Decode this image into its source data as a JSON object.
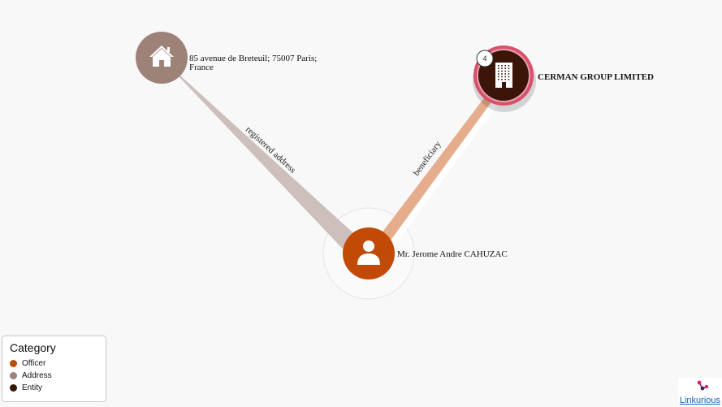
{
  "nodes": {
    "address": {
      "label_line1": "85 avenue de Breteuil; 75007 Paris;",
      "label_line2": "France",
      "icon": "home-icon",
      "color": "#9d8278"
    },
    "entity": {
      "label": "CERMAN GROUP LIMITED",
      "icon": "building-icon",
      "color": "#3b1508",
      "ring_color": "#d9506a",
      "badge": "4"
    },
    "officer": {
      "label": "Mr. Jerome Andre CAHUZAC",
      "icon": "person-icon",
      "color": "#c04a06"
    }
  },
  "edges": {
    "registered": {
      "label": "registered address",
      "color": "#cdbfbb"
    },
    "beneficiary": {
      "label": "beneficiary",
      "color": "#e6ad8c"
    }
  },
  "legend": {
    "title": "Category",
    "items": [
      {
        "label": "Officer",
        "color": "#c04a06"
      },
      {
        "label": "Address",
        "color": "#9d8278"
      },
      {
        "label": "Entity",
        "color": "#3b1508"
      }
    ]
  },
  "brand": {
    "link_text": "Linkurious"
  }
}
